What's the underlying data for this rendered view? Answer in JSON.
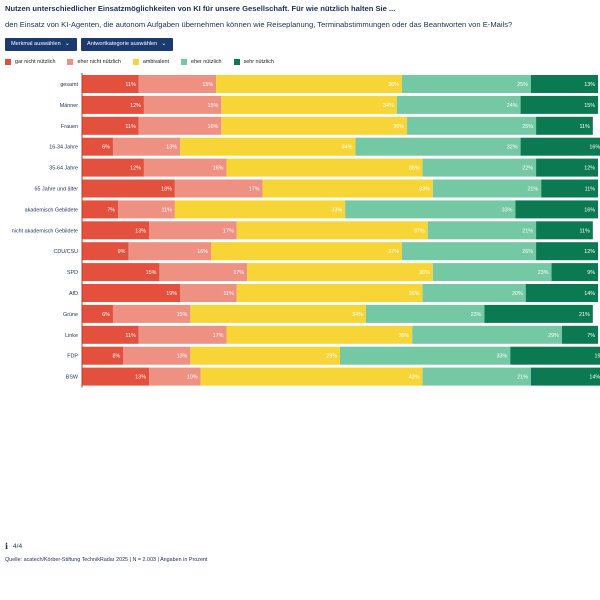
{
  "header": {
    "title": "Nutzen unterschiedlicher Einsatzmöglichkeiten von KI für unsere Gesellschaft. Für wie nützlich halten Sie ...",
    "subtitle": "den Einsatz von KI-Agenten, die autonom Aufgaben übernehmen können wie Reiseplanung, Terminabstimmungen oder das Beantworten von E-Mails?"
  },
  "controls": {
    "merkmal_label": "Merkmal auswählen",
    "antwort_label": "Antwortkategorie auswählen"
  },
  "footer": {
    "page": "4/4",
    "source": "Quelle: acatech/Körber-Stiftung TechnikRadar 2025 | N = 2.003 | Angaben in Prozent"
  },
  "colors": {
    "gar_nicht": "#e4503e",
    "eher_nicht": "#ee9183",
    "ambivalent": "#f8d537",
    "eher": "#74c8a4",
    "sehr": "#0b7a52",
    "axis": "#c0392b"
  },
  "chart_data": {
    "type": "bar",
    "orientation": "horizontal",
    "stacked": true,
    "unit": "%",
    "xlim": [
      0,
      100
    ],
    "legend_position": "top-left",
    "categories": [
      "gesamt",
      "Männer",
      "Frauen",
      "16-34 Jahre",
      "35-64 Jahre",
      "65 Jahre und älter",
      "akademisch Gebildete",
      "nicht akademisch Gebildete",
      "CDU/CSU",
      "SPD",
      "AfD",
      "Grüne",
      "Linke",
      "FDP",
      "BSW"
    ],
    "series": [
      {
        "name": "gar nicht nützlich",
        "key": "gar_nicht",
        "values": [
          11,
          12,
          11,
          6,
          12,
          18,
          7,
          13,
          9,
          15,
          19,
          6,
          11,
          8,
          13
        ]
      },
      {
        "name": "eher nicht nützlich",
        "key": "eher_nicht",
        "values": [
          15,
          15,
          16,
          13,
          16,
          17,
          11,
          17,
          16,
          17,
          11,
          15,
          17,
          13,
          10
        ]
      },
      {
        "name": "ambivalent",
        "key": "ambivalent",
        "values": [
          36,
          34,
          36,
          34,
          38,
          33,
          33,
          37,
          37,
          36,
          36,
          34,
          36,
          29,
          43
        ]
      },
      {
        "name": "eher nützlich",
        "key": "eher",
        "values": [
          25,
          24,
          25,
          32,
          22,
          21,
          33,
          21,
          26,
          23,
          20,
          23,
          29,
          33,
          21
        ]
      },
      {
        "name": "sehr nützlich",
        "key": "sehr",
        "values": [
          13,
          15,
          11,
          16,
          12,
          11,
          16,
          11,
          12,
          9,
          14,
          21,
          7,
          19,
          14
        ]
      }
    ]
  }
}
